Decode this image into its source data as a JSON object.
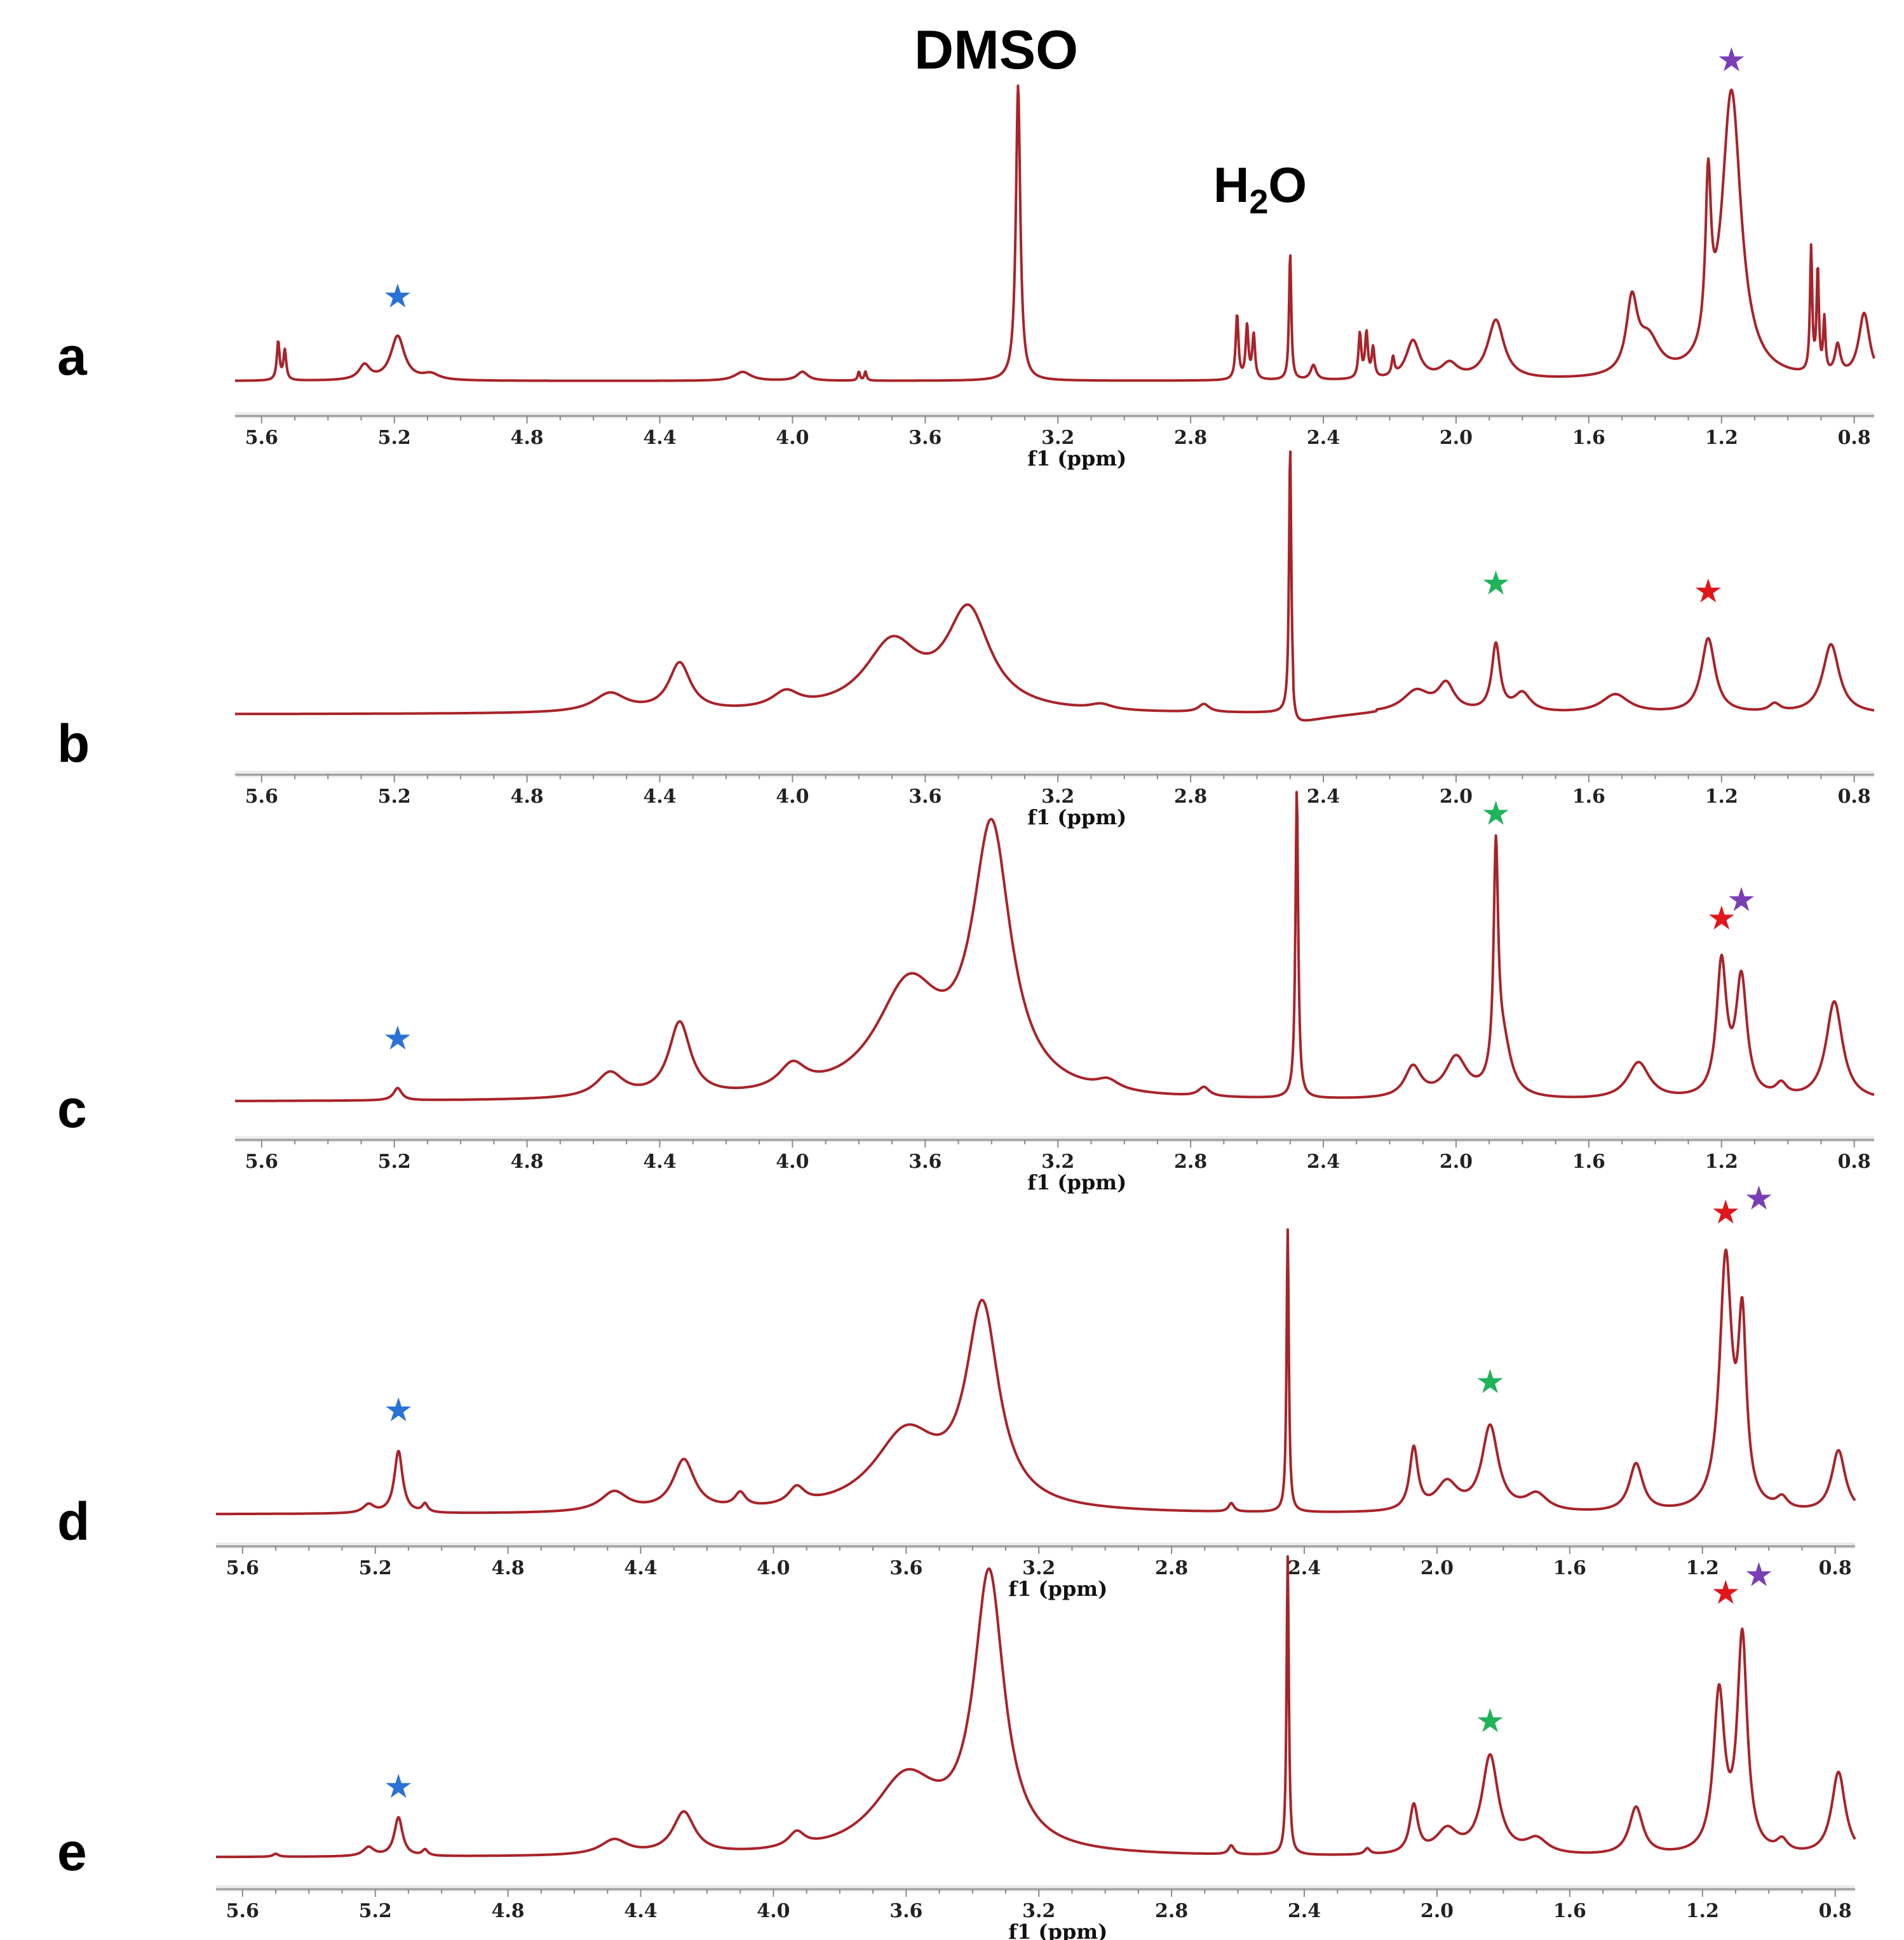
{
  "chart_data": {
    "type": "line",
    "description_free": true,
    "colors": {
      "spectrum": "#a8232a",
      "star_blue": "#2a72d6",
      "star_green": "#1fb35a",
      "star_red": "#e0161b",
      "star_purple": "#7b3fb5"
    },
    "annotations": {
      "dmso": "DMSO",
      "water_h": "H",
      "water_sub": "2",
      "water_o": "O",
      "star_glyph": "★"
    },
    "xlabel": "f1 (ppm)",
    "xlim": [
      5.68,
      0.74
    ],
    "ticks": [
      5.6,
      5.2,
      4.8,
      4.4,
      4.0,
      3.6,
      3.2,
      2.8,
      2.4,
      2.0,
      1.6,
      1.2,
      0.8
    ],
    "tick_labels": [
      "5.6",
      "5.2",
      "4.8",
      "4.4",
      "4.0",
      "3.6",
      "3.2",
      "2.8",
      "2.4",
      "2.0",
      "1.6",
      "1.2",
      "0.8"
    ],
    "panels": [
      {
        "letter": "a",
        "baseline": 0.0,
        "peaks": [
          {
            "ppm": 5.55,
            "h": 0.13,
            "w": 0.005
          },
          {
            "ppm": 5.53,
            "h": 0.1,
            "w": 0.005
          },
          {
            "ppm": 5.29,
            "h": 0.05,
            "w": 0.02
          },
          {
            "ppm": 5.19,
            "h": 0.15,
            "w": 0.025
          },
          {
            "ppm": 5.09,
            "h": 0.02,
            "w": 0.03
          },
          {
            "ppm": 4.15,
            "h": 0.03,
            "w": 0.03
          },
          {
            "ppm": 3.97,
            "h": 0.03,
            "w": 0.02
          },
          {
            "ppm": 3.8,
            "h": 0.03,
            "w": 0.004
          },
          {
            "ppm": 3.78,
            "h": 0.03,
            "w": 0.004
          },
          {
            "ppm": 3.32,
            "h": 1.0,
            "w": 0.008
          },
          {
            "ppm": 2.66,
            "h": 0.22,
            "w": 0.005
          },
          {
            "ppm": 2.63,
            "h": 0.18,
            "w": 0.005
          },
          {
            "ppm": 2.61,
            "h": 0.15,
            "w": 0.005
          },
          {
            "ppm": 2.5,
            "h": 0.43,
            "w": 0.004
          },
          {
            "ppm": 2.43,
            "h": 0.05,
            "w": 0.01
          },
          {
            "ppm": 2.29,
            "h": 0.15,
            "w": 0.005
          },
          {
            "ppm": 2.27,
            "h": 0.15,
            "w": 0.005
          },
          {
            "ppm": 2.25,
            "h": 0.1,
            "w": 0.005
          },
          {
            "ppm": 2.19,
            "h": 0.06,
            "w": 0.005
          },
          {
            "ppm": 2.13,
            "h": 0.13,
            "w": 0.025
          },
          {
            "ppm": 2.02,
            "h": 0.05,
            "w": 0.03
          },
          {
            "ppm": 1.88,
            "h": 0.2,
            "w": 0.03
          },
          {
            "ppm": 1.47,
            "h": 0.24,
            "w": 0.02
          },
          {
            "ppm": 1.42,
            "h": 0.12,
            "w": 0.04
          },
          {
            "ppm": 1.24,
            "h": 0.55,
            "w": 0.01
          },
          {
            "ppm": 1.17,
            "h": 0.97,
            "w": 0.035
          },
          {
            "ppm": 0.93,
            "h": 0.42,
            "w": 0.004
          },
          {
            "ppm": 0.91,
            "h": 0.35,
            "w": 0.004
          },
          {
            "ppm": 0.89,
            "h": 0.18,
            "w": 0.004
          },
          {
            "ppm": 0.85,
            "h": 0.1,
            "w": 0.01
          },
          {
            "ppm": 0.77,
            "h": 0.22,
            "w": 0.02
          }
        ],
        "stars": [
          {
            "ppm": 5.19,
            "color": "star_blue",
            "level": 0.25
          },
          {
            "ppm": 1.17,
            "color": "star_purple",
            "level": 1.05
          }
        ]
      },
      {
        "letter": "b",
        "baseline": 0.0,
        "peaks": [
          {
            "ppm": 4.55,
            "h": 0.07,
            "w": 0.06
          },
          {
            "ppm": 4.34,
            "h": 0.18,
            "w": 0.04
          },
          {
            "ppm": 4.02,
            "h": 0.06,
            "w": 0.05
          },
          {
            "ppm": 3.7,
            "h": 0.25,
            "w": 0.1
          },
          {
            "ppm": 3.47,
            "h": 0.37,
            "w": 0.08
          },
          {
            "ppm": 3.07,
            "h": 0.02,
            "w": 0.04
          },
          {
            "ppm": 2.76,
            "h": 0.03,
            "w": 0.02
          },
          {
            "ppm": 2.5,
            "h": 1.0,
            "w": 0.004
          },
          {
            "ppm": 2.12,
            "h": 0.08,
            "w": 0.05
          },
          {
            "ppm": 2.03,
            "h": 0.1,
            "w": 0.03
          },
          {
            "ppm": 1.88,
            "h": 0.25,
            "w": 0.015
          },
          {
            "ppm": 1.8,
            "h": 0.07,
            "w": 0.03
          },
          {
            "ppm": 1.52,
            "h": 0.07,
            "w": 0.05
          },
          {
            "ppm": 1.24,
            "h": 0.28,
            "w": 0.025
          },
          {
            "ppm": 1.04,
            "h": 0.03,
            "w": 0.02
          },
          {
            "ppm": 0.87,
            "h": 0.26,
            "w": 0.03
          }
        ],
        "dip": {
          "ppm": 2.49,
          "depth": 0.05
        },
        "stars": [
          {
            "ppm": 1.88,
            "color": "star_green",
            "level": 0.45
          },
          {
            "ppm": 1.24,
            "color": "star_red",
            "level": 0.42
          }
        ]
      },
      {
        "letter": "c",
        "baseline": 0.0,
        "peaks": [
          {
            "ppm": 5.19,
            "h": 0.04,
            "w": 0.015
          },
          {
            "ppm": 4.55,
            "h": 0.08,
            "w": 0.05
          },
          {
            "ppm": 4.34,
            "h": 0.24,
            "w": 0.04
          },
          {
            "ppm": 4.0,
            "h": 0.08,
            "w": 0.05
          },
          {
            "ppm": 3.65,
            "h": 0.35,
            "w": 0.12
          },
          {
            "ppm": 3.4,
            "h": 0.85,
            "w": 0.07
          },
          {
            "ppm": 3.05,
            "h": 0.03,
            "w": 0.04
          },
          {
            "ppm": 2.76,
            "h": 0.03,
            "w": 0.02
          },
          {
            "ppm": 2.48,
            "h": 1.0,
            "w": 0.005
          },
          {
            "ppm": 2.13,
            "h": 0.1,
            "w": 0.03
          },
          {
            "ppm": 2.0,
            "h": 0.13,
            "w": 0.04
          },
          {
            "ppm": 1.88,
            "h": 0.72,
            "w": 0.008
          },
          {
            "ppm": 1.86,
            "h": 0.18,
            "w": 0.03
          },
          {
            "ppm": 1.45,
            "h": 0.12,
            "w": 0.04
          },
          {
            "ppm": 1.2,
            "h": 0.43,
            "w": 0.018
          },
          {
            "ppm": 1.14,
            "h": 0.38,
            "w": 0.02
          },
          {
            "ppm": 1.02,
            "h": 0.04,
            "w": 0.02
          },
          {
            "ppm": 0.86,
            "h": 0.32,
            "w": 0.03
          }
        ],
        "stars": [
          {
            "ppm": 5.19,
            "color": "star_blue",
            "level": 0.17
          },
          {
            "ppm": 1.88,
            "color": "star_green",
            "level": 0.9
          },
          {
            "ppm": 1.2,
            "color": "star_red",
            "level": 0.56
          },
          {
            "ppm": 1.14,
            "color": "star_purple",
            "level": 0.62
          }
        ]
      },
      {
        "letter": "d",
        "baseline": 0.0,
        "peaks": [
          {
            "ppm": 5.22,
            "h": 0.03,
            "w": 0.02
          },
          {
            "ppm": 5.13,
            "h": 0.22,
            "w": 0.015
          },
          {
            "ppm": 5.05,
            "h": 0.03,
            "w": 0.01
          },
          {
            "ppm": 4.48,
            "h": 0.07,
            "w": 0.05
          },
          {
            "ppm": 4.27,
            "h": 0.18,
            "w": 0.04
          },
          {
            "ppm": 4.1,
            "h": 0.05,
            "w": 0.02
          },
          {
            "ppm": 3.93,
            "h": 0.06,
            "w": 0.03
          },
          {
            "ppm": 3.6,
            "h": 0.27,
            "w": 0.12
          },
          {
            "ppm": 3.37,
            "h": 0.7,
            "w": 0.06
          },
          {
            "ppm": 2.62,
            "h": 0.03,
            "w": 0.01
          },
          {
            "ppm": 2.45,
            "h": 1.0,
            "w": 0.004
          },
          {
            "ppm": 2.07,
            "h": 0.22,
            "w": 0.015
          },
          {
            "ppm": 1.97,
            "h": 0.1,
            "w": 0.04
          },
          {
            "ppm": 1.84,
            "h": 0.3,
            "w": 0.03
          },
          {
            "ppm": 1.7,
            "h": 0.06,
            "w": 0.04
          },
          {
            "ppm": 1.4,
            "h": 0.17,
            "w": 0.025
          },
          {
            "ppm": 1.13,
            "h": 0.88,
            "w": 0.022
          },
          {
            "ppm": 1.08,
            "h": 0.62,
            "w": 0.015
          },
          {
            "ppm": 0.96,
            "h": 0.04,
            "w": 0.02
          },
          {
            "ppm": 0.79,
            "h": 0.22,
            "w": 0.025
          }
        ],
        "stars": [
          {
            "ppm": 5.13,
            "color": "star_blue",
            "level": 0.33
          },
          {
            "ppm": 1.84,
            "color": "star_green",
            "level": 0.43
          },
          {
            "ppm": 1.13,
            "color": "star_red",
            "level": 1.03
          },
          {
            "ppm": 1.03,
            "color": "star_purple",
            "level": 1.08
          }
        ]
      },
      {
        "letter": "e",
        "baseline": 0.0,
        "peaks": [
          {
            "ppm": 5.5,
            "h": 0.01,
            "w": 0.01
          },
          {
            "ppm": 5.22,
            "h": 0.03,
            "w": 0.02
          },
          {
            "ppm": 5.13,
            "h": 0.13,
            "w": 0.015
          },
          {
            "ppm": 5.05,
            "h": 0.02,
            "w": 0.01
          },
          {
            "ppm": 4.48,
            "h": 0.05,
            "w": 0.05
          },
          {
            "ppm": 4.27,
            "h": 0.14,
            "w": 0.04
          },
          {
            "ppm": 3.93,
            "h": 0.05,
            "w": 0.03
          },
          {
            "ppm": 3.6,
            "h": 0.25,
            "w": 0.12
          },
          {
            "ppm": 3.35,
            "h": 0.92,
            "w": 0.055
          },
          {
            "ppm": 2.62,
            "h": 0.03,
            "w": 0.01
          },
          {
            "ppm": 2.45,
            "h": 1.0,
            "w": 0.004
          },
          {
            "ppm": 2.21,
            "h": 0.02,
            "w": 0.01
          },
          {
            "ppm": 2.07,
            "h": 0.16,
            "w": 0.015
          },
          {
            "ppm": 1.97,
            "h": 0.08,
            "w": 0.04
          },
          {
            "ppm": 1.84,
            "h": 0.33,
            "w": 0.03
          },
          {
            "ppm": 1.7,
            "h": 0.05,
            "w": 0.04
          },
          {
            "ppm": 1.4,
            "h": 0.16,
            "w": 0.025
          },
          {
            "ppm": 1.15,
            "h": 0.53,
            "w": 0.02
          },
          {
            "ppm": 1.08,
            "h": 0.72,
            "w": 0.018
          },
          {
            "ppm": 0.96,
            "h": 0.04,
            "w": 0.02
          },
          {
            "ppm": 0.79,
            "h": 0.28,
            "w": 0.025
          }
        ],
        "stars": [
          {
            "ppm": 5.13,
            "color": "star_blue",
            "level": 0.2
          },
          {
            "ppm": 1.84,
            "color": "star_green",
            "level": 0.42
          },
          {
            "ppm": 1.13,
            "color": "star_red",
            "level": 0.85
          },
          {
            "ppm": 1.03,
            "color": "star_purple",
            "level": 0.91
          }
        ]
      }
    ]
  }
}
